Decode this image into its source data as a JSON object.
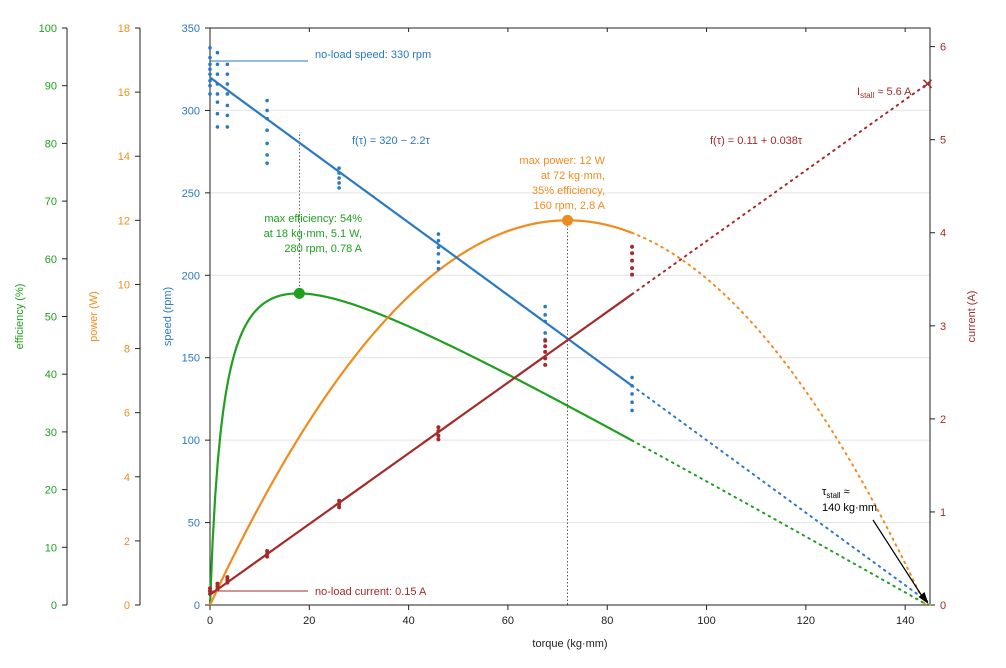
{
  "chart_data": {
    "type": "line",
    "xlabel": "torque (kg·mm)",
    "xlim": [
      0,
      145
    ],
    "xticks": [
      0,
      20,
      40,
      60,
      80,
      100,
      120,
      140
    ],
    "colors": {
      "efficiency": "#1fa01f",
      "power": "#f08c1e",
      "speed": "#2a79c4",
      "current": "#a52a2a",
      "grid": "#e4e4e4",
      "guide": "#333333",
      "annotation": "#000000"
    },
    "axes": [
      {
        "id": "efficiency",
        "label": "efficiency (%)",
        "range": [
          0,
          100
        ],
        "ticks": [
          0,
          10,
          20,
          30,
          40,
          50,
          60,
          70,
          80,
          90,
          100
        ],
        "side": "left-outer"
      },
      {
        "id": "power",
        "label": "power (W)",
        "range": [
          0,
          18
        ],
        "ticks": [
          0,
          2,
          4,
          6,
          8,
          10,
          12,
          14,
          16,
          18
        ],
        "side": "left-middle"
      },
      {
        "id": "speed",
        "label": "speed (rpm)",
        "range": [
          0,
          350
        ],
        "ticks": [
          0,
          50,
          100,
          150,
          200,
          250,
          300,
          350
        ],
        "side": "left-inner"
      },
      {
        "id": "current",
        "label": "current (A)",
        "range": [
          0,
          6.2
        ],
        "ticks": [
          0,
          1,
          2,
          3,
          4,
          5,
          6
        ],
        "side": "right"
      }
    ],
    "fit_range": [
      0,
      85
    ],
    "extrapolate_range": [
      85,
      145
    ],
    "series": [
      {
        "name": "speed",
        "axis": "speed",
        "model": "linear",
        "intercept": 320,
        "slope": -2.2
      },
      {
        "name": "current",
        "axis": "current",
        "model": "linear",
        "intercept": 0.11,
        "slope": 0.038
      },
      {
        "name": "power",
        "axis": "power",
        "model": "torque_times_speed",
        "peak": {
          "x": 72,
          "y": 12
        }
      },
      {
        "name": "efficiency",
        "axis": "efficiency",
        "model": "power_over_input",
        "peak": {
          "x": 18,
          "y": 54
        }
      }
    ],
    "speed_measurements": [
      {
        "x": 0,
        "y": [
          338,
          332,
          328,
          325,
          322,
          318,
          315,
          310
        ]
      },
      {
        "x": 1.5,
        "y": [
          335,
          328,
          322,
          316,
          310,
          305,
          298,
          290
        ]
      },
      {
        "x": 3.5,
        "y": [
          328,
          322,
          316,
          310,
          303,
          297,
          290
        ]
      },
      {
        "x": 11.5,
        "y": [
          306,
          300,
          295,
          288,
          280,
          273,
          268
        ]
      },
      {
        "x": 26,
        "y": [
          265,
          262,
          259,
          256,
          253
        ]
      },
      {
        "x": 46,
        "y": [
          225,
          221,
          217,
          213,
          208,
          204
        ]
      },
      {
        "x": 67.5,
        "y": [
          181,
          176,
          172,
          165,
          161
        ]
      },
      {
        "x": 85,
        "y": [
          138,
          133,
          128,
          123,
          118
        ]
      }
    ],
    "current_measurements": [
      {
        "x": 0,
        "y": [
          0.12,
          0.15,
          0.18
        ]
      },
      {
        "x": 1.5,
        "y": [
          0.17,
          0.2,
          0.23
        ]
      },
      {
        "x": 3.5,
        "y": [
          0.24,
          0.27,
          0.3
        ]
      },
      {
        "x": 11.5,
        "y": [
          0.52,
          0.55,
          0.58
        ]
      },
      {
        "x": 26,
        "y": [
          1.05,
          1.08,
          1.12
        ]
      },
      {
        "x": 46,
        "y": [
          1.78,
          1.82,
          1.87,
          1.91
        ]
      },
      {
        "x": 67.5,
        "y": [
          2.58,
          2.65,
          2.72,
          2.78,
          2.84
        ]
      },
      {
        "x": 85,
        "y": [
          3.55,
          3.62,
          3.7,
          3.78,
          3.85
        ]
      }
    ],
    "annotations": {
      "no_load_speed": "no-load speed: 330 rpm",
      "no_load_current": "no-load current: 0.15 A",
      "speed_fit": "f(τ) = 320 − 2.2τ",
      "current_fit": "f(τ) = 0.11 + 0.038τ",
      "max_efficiency": [
        "max efficiency: 54%",
        "at 18 kg·mm, 5.1 W,",
        "280 rpm, 0.78 A"
      ],
      "max_power": [
        "max power: 12 W",
        "at 72 kg·mm,",
        "35% efficiency,",
        "160 rpm, 2.8 A"
      ],
      "stall_current": {
        "prefix": "I",
        "sub": "stall",
        "suffix": " ≈ 5.6 A"
      },
      "stall_torque": {
        "prefix": "τ",
        "sub": "stall",
        "suffix": " ≈",
        "line2": "140 kg·mm"
      }
    },
    "markers": {
      "no_load_speed_value": 330,
      "no_load_current_value": 0.15,
      "max_efficiency_x": 18,
      "max_power_x": 72,
      "stall_torque": 144.5,
      "stall_current": 5.6
    }
  }
}
